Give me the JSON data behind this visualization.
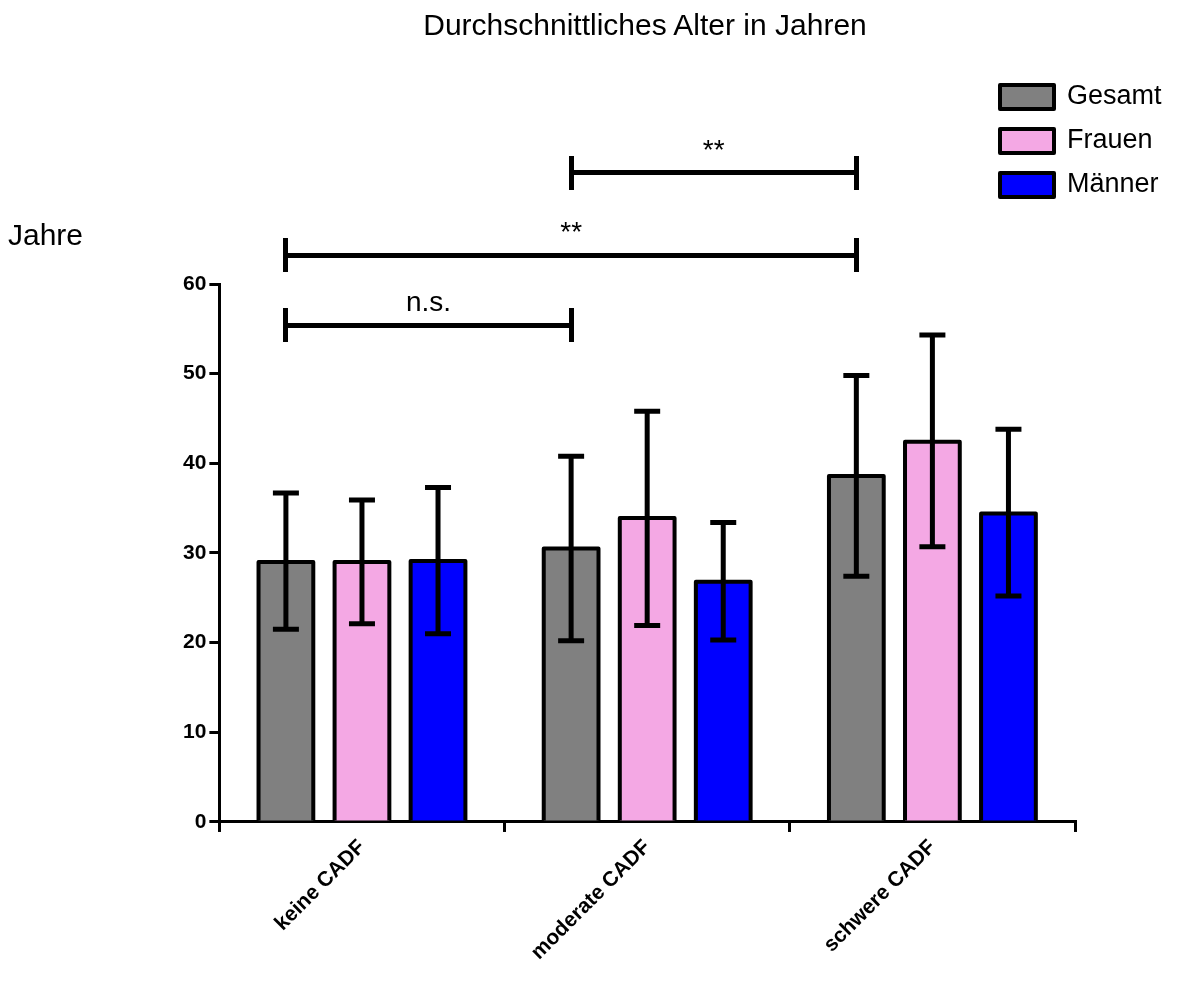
{
  "chart_data": {
    "type": "bar",
    "title": "Durchschnittliches Alter in Jahren",
    "ylabel": "Jahre",
    "categories": [
      "keine CADF",
      "moderate CADF",
      "schwere CADF"
    ],
    "series": [
      {
        "name": "Gesamt",
        "color": "#808080",
        "values": [
          29.0,
          30.5,
          38.6
        ],
        "errors": [
          [
            21.5,
            36.7
          ],
          [
            20.2,
            40.8
          ],
          [
            27.4,
            49.8
          ]
        ]
      },
      {
        "name": "Frauen",
        "color": "#f4a8e4",
        "values": [
          29.0,
          33.9,
          42.4
        ],
        "errors": [
          [
            22.1,
            35.9
          ],
          [
            21.9,
            45.8
          ],
          [
            30.7,
            54.3
          ]
        ]
      },
      {
        "name": "Männer",
        "color": "#0000ff",
        "values": [
          29.1,
          26.8,
          34.4
        ],
        "errors": [
          [
            21.0,
            37.3
          ],
          [
            20.3,
            33.4
          ],
          [
            25.2,
            43.8
          ]
        ]
      }
    ],
    "ylim": [
      0,
      60
    ],
    "yticks": [
      0,
      10,
      20,
      30,
      40,
      50,
      60
    ],
    "grid": false,
    "legend": "top right",
    "annotations": [
      "n.s.",
      "**",
      "**"
    ]
  }
}
